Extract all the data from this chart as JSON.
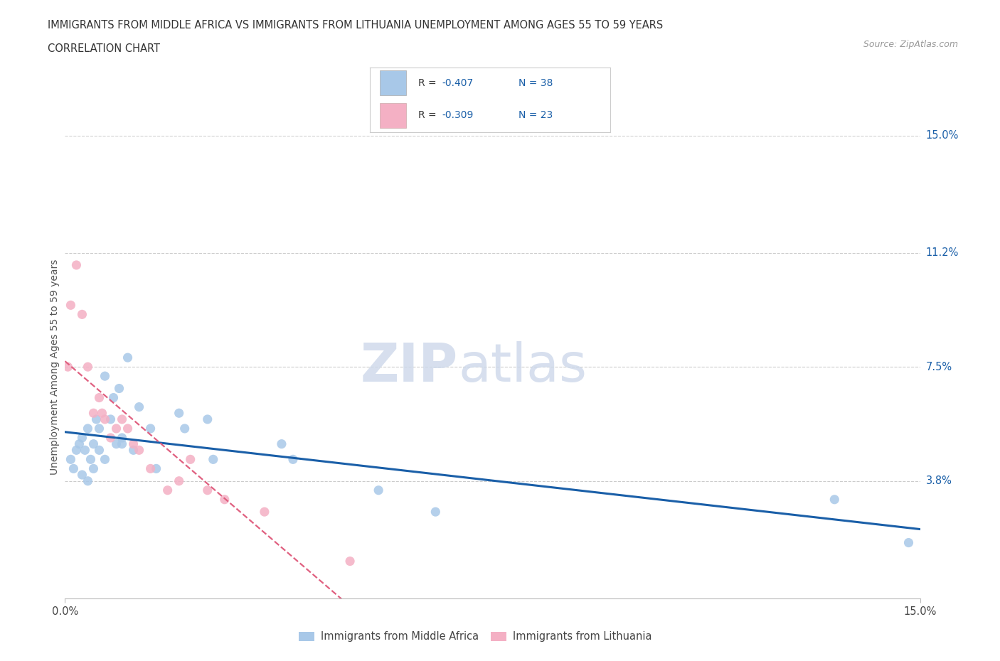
{
  "title_line1": "IMMIGRANTS FROM MIDDLE AFRICA VS IMMIGRANTS FROM LITHUANIA UNEMPLOYMENT AMONG AGES 55 TO 59 YEARS",
  "title_line2": "CORRELATION CHART",
  "source_text": "Source: ZipAtlas.com",
  "ylabel": "Unemployment Among Ages 55 to 59 years",
  "xlim": [
    0.0,
    15.0
  ],
  "ylim": [
    0.0,
    15.0
  ],
  "grid_color": "#cccccc",
  "background_color": "#ffffff",
  "watermark_zip": "ZIP",
  "watermark_atlas": "atlas",
  "color_blue": "#a8c8e8",
  "color_pink": "#f4b0c4",
  "color_blue_line": "#1a5fa8",
  "color_pink_line": "#e06080",
  "color_text_blue": "#1a5fa8",
  "legend_label1": "Immigrants from Middle Africa",
  "legend_label2": "Immigrants from Lithuania",
  "right_ytick_vals": [
    3.8,
    7.5,
    11.2,
    15.0
  ],
  "right_ytick_labels": [
    "3.8%",
    "7.5%",
    "11.2%",
    "15.0%"
  ],
  "middle_africa_x": [
    0.1,
    0.15,
    0.2,
    0.25,
    0.3,
    0.3,
    0.35,
    0.4,
    0.4,
    0.45,
    0.5,
    0.5,
    0.55,
    0.6,
    0.6,
    0.7,
    0.7,
    0.8,
    0.85,
    0.9,
    0.95,
    1.0,
    1.0,
    1.1,
    1.2,
    1.3,
    1.5,
    1.6,
    2.0,
    2.1,
    2.5,
    2.6,
    3.8,
    4.0,
    5.5,
    6.5,
    13.5,
    14.8
  ],
  "middle_africa_y": [
    4.5,
    4.2,
    4.8,
    5.0,
    4.0,
    5.2,
    4.8,
    3.8,
    5.5,
    4.5,
    5.0,
    4.2,
    5.8,
    4.8,
    5.5,
    4.5,
    7.2,
    5.8,
    6.5,
    5.0,
    6.8,
    5.2,
    5.0,
    7.8,
    4.8,
    6.2,
    5.5,
    4.2,
    6.0,
    5.5,
    5.8,
    4.5,
    5.0,
    4.5,
    3.5,
    2.8,
    3.2,
    1.8
  ],
  "lithuania_x": [
    0.05,
    0.1,
    0.2,
    0.3,
    0.4,
    0.5,
    0.6,
    0.65,
    0.7,
    0.8,
    0.9,
    1.0,
    1.1,
    1.2,
    1.3,
    1.5,
    1.8,
    2.0,
    2.2,
    2.5,
    2.8,
    3.5,
    5.0
  ],
  "lithuania_y": [
    7.5,
    9.5,
    10.8,
    9.2,
    7.5,
    6.0,
    6.5,
    6.0,
    5.8,
    5.2,
    5.5,
    5.8,
    5.5,
    5.0,
    4.8,
    4.2,
    3.5,
    3.8,
    4.5,
    3.5,
    3.2,
    2.8,
    1.2
  ]
}
